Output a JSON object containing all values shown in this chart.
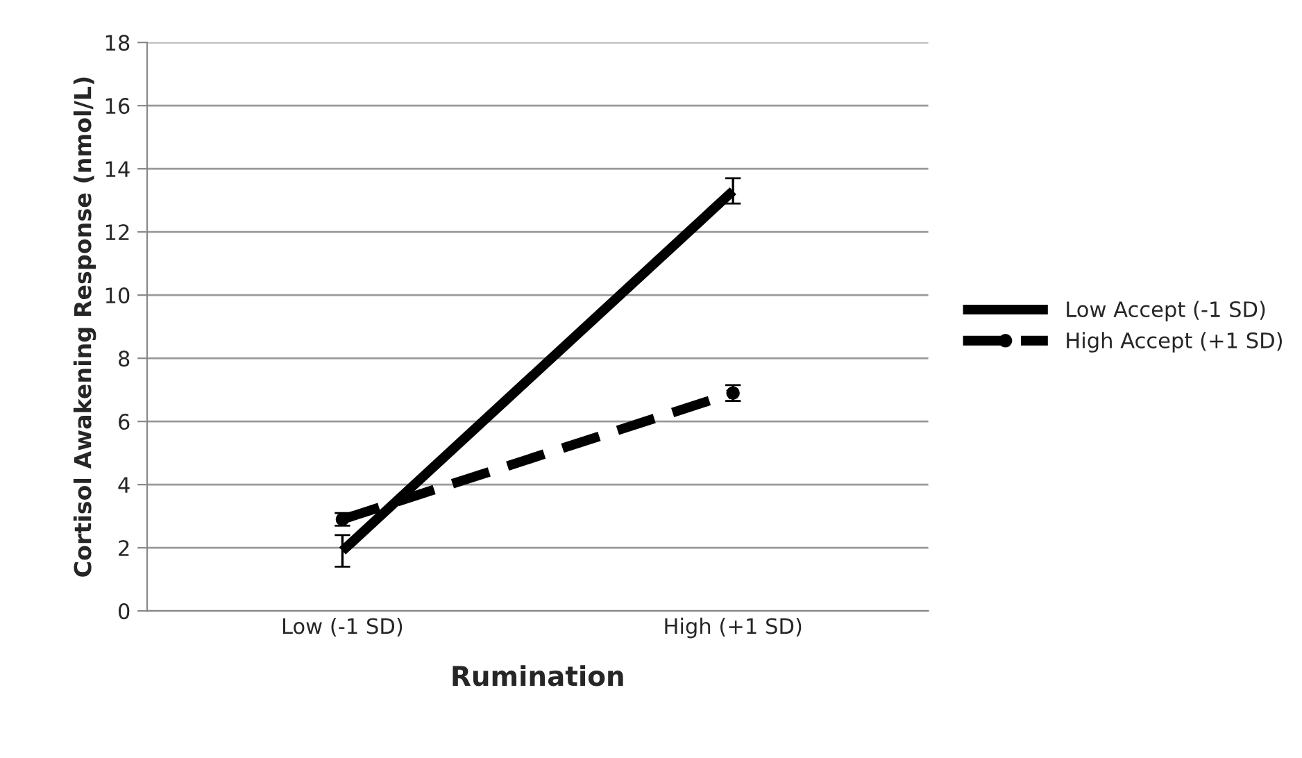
{
  "chart_data": {
    "type": "line",
    "xlabel": "Rumination",
    "ylabel": "Cortisol Awakening Response (nmol/L)",
    "categories": [
      "Low (-1 SD)",
      "High (+1 SD)"
    ],
    "series": [
      {
        "name": "Low Accept (-1 SD)",
        "color": "#000000",
        "values": [
          1.9,
          13.3
        ],
        "errors": [
          0.5,
          0.4
        ],
        "line_style": "solid",
        "marker": "none"
      },
      {
        "name": "High Accept (+1 SD)",
        "color": "#000000",
        "values": [
          2.9,
          6.9
        ],
        "errors": [
          0.2,
          0.25
        ],
        "line_style": "dashed",
        "marker": "circle"
      }
    ],
    "ylim": [
      0,
      18
    ],
    "yticks": [
      0,
      2,
      4,
      6,
      8,
      10,
      12,
      14,
      16,
      18
    ],
    "grid": "y",
    "legend": "right"
  }
}
